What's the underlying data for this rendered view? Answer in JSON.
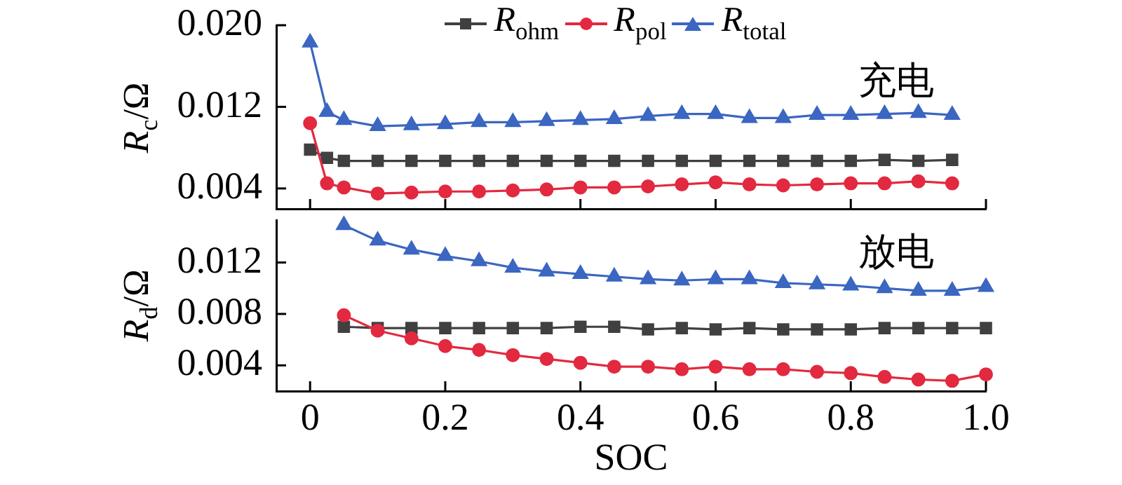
{
  "chart_data": [
    {
      "type": "line",
      "ylabel": "R$_{c}$/Ω",
      "legend": "top",
      "annotations": [
        "充电"
      ],
      "tick_labels": "y",
      "x": [
        0,
        0.025,
        0.05,
        0.1,
        0.15,
        0.2,
        0.25,
        0.3,
        0.35,
        0.4,
        0.45,
        0.5,
        0.55,
        0.6,
        0.65,
        0.7,
        0.75,
        0.8,
        0.85,
        0.9,
        0.95
      ],
      "xlim": [
        -0.05,
        1.0
      ],
      "xticks": [
        0,
        0.2,
        0.4,
        0.6,
        0.8,
        1
      ],
      "ylim": [
        0.002,
        0.02
      ],
      "yticks": [
        0.004,
        0.012,
        {
          "value": 0.02,
          "label": "0.020"
        }
      ],
      "series": [
        {
          "name": "R$_{ohm}$",
          "color": "#404040",
          "marker": "square",
          "values": [
            0.0078,
            0.007,
            0.0067,
            0.0067,
            0.0067,
            0.0067,
            0.0067,
            0.0067,
            0.0067,
            0.0067,
            0.0067,
            0.0067,
            0.0067,
            0.0067,
            0.0067,
            0.0067,
            0.0067,
            0.0067,
            0.0068,
            0.0067,
            0.0068
          ]
        },
        {
          "name": "R$_{pol}$",
          "color": "#e3293f",
          "marker": "circle",
          "values": [
            0.0104,
            0.0045,
            0.0041,
            0.0035,
            0.0036,
            0.0037,
            0.0037,
            0.0038,
            0.0039,
            0.0041,
            0.0041,
            0.0042,
            0.0044,
            0.0046,
            0.0044,
            0.0043,
            0.0044,
            0.0045,
            0.0045,
            0.0047,
            0.0045
          ]
        },
        {
          "name": "R$_{total}$",
          "color": "#3b66c2",
          "marker": "triangle",
          "values": [
            0.0183,
            0.0115,
            0.0107,
            0.0101,
            0.0102,
            0.0103,
            0.0105,
            0.0105,
            0.0106,
            0.0107,
            0.0108,
            0.0111,
            0.0113,
            0.0113,
            0.0109,
            0.0109,
            0.0112,
            0.0112,
            0.0113,
            0.0114,
            0.0112
          ]
        }
      ]
    },
    {
      "type": "line",
      "ylabel": "R$_{d}$/Ω",
      "xlabel": "SOC",
      "annotations": [
        "放电"
      ],
      "x": [
        0.05,
        0.1,
        0.15,
        0.2,
        0.25,
        0.3,
        0.35,
        0.4,
        0.45,
        0.5,
        0.55,
        0.6,
        0.65,
        0.7,
        0.75,
        0.8,
        0.85,
        0.9,
        0.95,
        1.0
      ],
      "xlim": [
        -0.05,
        1.0
      ],
      "xticks": [
        0,
        0.2,
        0.4,
        0.6,
        0.8,
        {
          "value": 1,
          "label": "1.0"
        }
      ],
      "ylim": [
        0.002,
        0.0153
      ],
      "yticks": [
        0.004,
        0.008,
        0.012
      ],
      "series": [
        {
          "color": "#404040",
          "marker": "square",
          "values": [
            0.007,
            0.0069,
            0.0069,
            0.0069,
            0.0069,
            0.0069,
            0.0069,
            0.007,
            0.007,
            0.0068,
            0.0069,
            0.0068,
            0.0069,
            0.0068,
            0.0068,
            0.0068,
            0.0069,
            0.0069,
            0.0069,
            0.0069
          ]
        },
        {
          "color": "#e3293f",
          "marker": "circle",
          "values": [
            0.0079,
            0.0067,
            0.0061,
            0.0055,
            0.0052,
            0.0048,
            0.0045,
            0.0042,
            0.0039,
            0.0039,
            0.0037,
            0.0039,
            0.0037,
            0.0037,
            0.0035,
            0.0034,
            0.0031,
            0.0029,
            0.0028,
            0.0033
          ]
        },
        {
          "color": "#3b66c2",
          "marker": "triangle",
          "values": [
            0.0149,
            0.0137,
            0.013,
            0.0125,
            0.0121,
            0.0116,
            0.0113,
            0.0111,
            0.0109,
            0.0107,
            0.0106,
            0.0107,
            0.0107,
            0.0104,
            0.0103,
            0.0102,
            0.01,
            0.0098,
            0.0098,
            0.0101
          ]
        }
      ]
    }
  ]
}
